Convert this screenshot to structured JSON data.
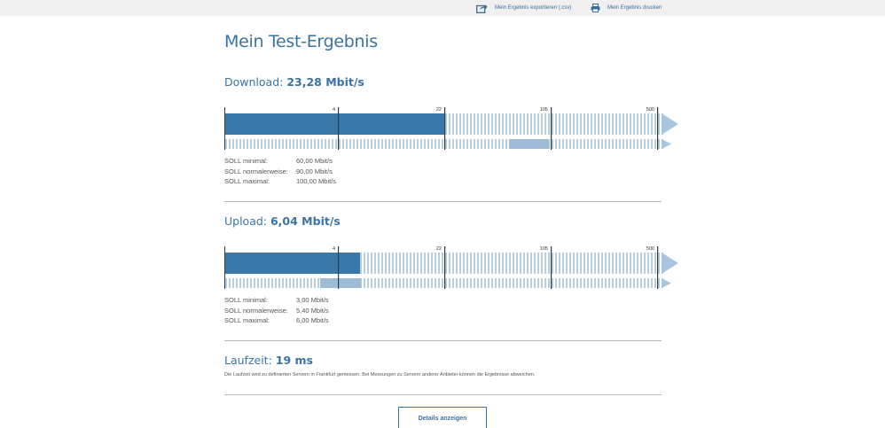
{
  "topbar": {
    "export_label": "Mein Ergebnis exportieren (.csv)",
    "print_label": "Mein Ergebnis drucken"
  },
  "page_title": "Mein Test-Ergebnis",
  "download": {
    "label": "Download: ",
    "value": "23,28 Mbit/s",
    "scale_ticks": [
      "4",
      "22",
      "105",
      "500"
    ],
    "measured_fraction": 0.506,
    "soll_range_fraction": [
      0.652,
      0.743
    ],
    "soll": [
      {
        "label": "SOLL minimal:",
        "value": "60,00 Mbit/s"
      },
      {
        "label": "SOLL normalerweise:",
        "value": "90,00 Mbit/s"
      },
      {
        "label": "SOLL maximal:",
        "value": "100,00 Mbit/s"
      }
    ]
  },
  "upload": {
    "label": "Upload: ",
    "value": "6,04 Mbit/s",
    "scale_ticks": [
      "4",
      "22",
      "105",
      "500"
    ],
    "measured_fraction": 0.311,
    "soll_range_fraction": [
      0.219,
      0.313
    ],
    "soll": [
      {
        "label": "SOLL minimal:",
        "value": "3,00 Mbit/s"
      },
      {
        "label": "SOLL normalerweise:",
        "value": "5,40 Mbit/s"
      },
      {
        "label": "SOLL maximal:",
        "value": "6,00 Mbit/s"
      }
    ]
  },
  "latency": {
    "label": "Laufzeit: ",
    "value": "19 ms",
    "note": "Die Laufzeit wird zu definierten Servern in Frankfurt gemessen. Bei Messungen zu Servern anderer Anbieter können die Ergebnisse abweichen."
  },
  "details_button": "Details anzeigen",
  "colors": {
    "accent": "#3b73a5",
    "bar_fill": "#3a78aa",
    "stripe": "#b6cde0",
    "soll_range": "#9fbcd6",
    "arrow": "#a9c4dd"
  }
}
